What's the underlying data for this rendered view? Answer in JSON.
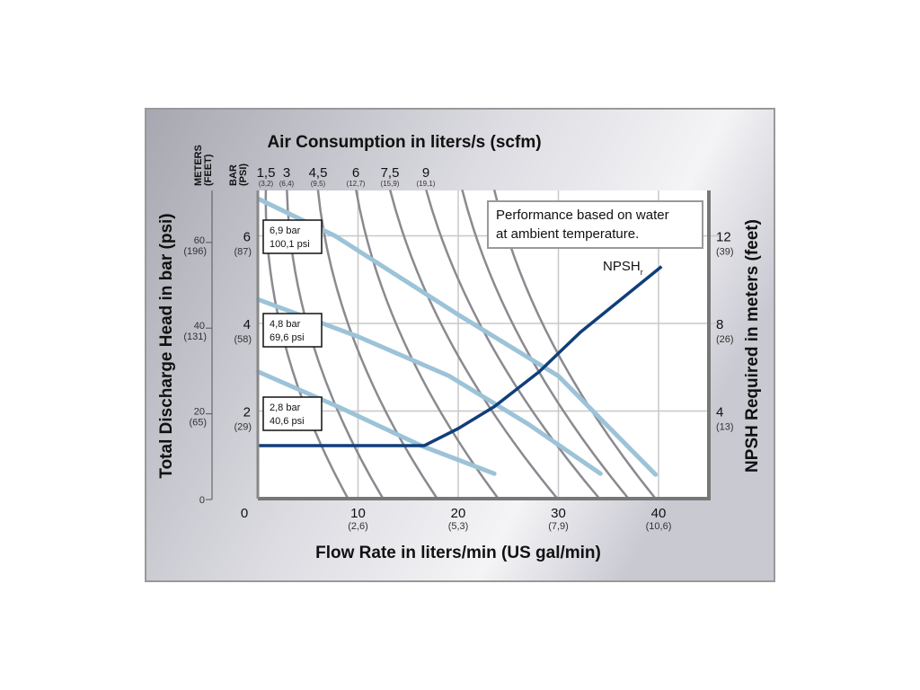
{
  "chart_data": {
    "type": "line",
    "title": "Air Consumption in liters/s (scfm)",
    "xlabel": "Flow Rate in liters/min (US gal/min)",
    "ylabel_left": "Total Discharge Head in bar (psi)",
    "ylabel_right": "NPSH Required in meters (feet)",
    "left_outer_axis_label": [
      "METERS",
      "(FEET)"
    ],
    "left_inner_axis_label": [
      "BAR",
      "(PSI)"
    ],
    "xlim": [
      0,
      45
    ],
    "ylim": [
      0,
      7.05
    ],
    "grid": true,
    "note": [
      "Performance based on water",
      "at ambient temperature."
    ],
    "x_ticks": [
      {
        "value": 0,
        "label": "0",
        "sub": ""
      },
      {
        "value": 10,
        "label": "10",
        "sub": "(2,6)"
      },
      {
        "value": 20,
        "label": "20",
        "sub": "(5,3)"
      },
      {
        "value": 30,
        "label": "30",
        "sub": "(7,9)"
      },
      {
        "value": 40,
        "label": "40",
        "sub": "(10,6)"
      }
    ],
    "y_ticks_bar": [
      {
        "value": 2,
        "label": "2",
        "sub": "(29)"
      },
      {
        "value": 4,
        "label": "4",
        "sub": "(58)"
      },
      {
        "value": 6,
        "label": "6",
        "sub": "(87)"
      }
    ],
    "y_ticks_meters": [
      {
        "value": 0,
        "label": "0",
        "sub": ""
      },
      {
        "value": 20,
        "label": "20",
        "sub": "(65)"
      },
      {
        "value": 40,
        "label": "40",
        "sub": "(131)"
      },
      {
        "value": 60,
        "label": "60",
        "sub": "(196)"
      }
    ],
    "y_ticks_npsh": [
      {
        "value": 4,
        "label": "4",
        "sub": "(13)"
      },
      {
        "value": 8,
        "label": "8",
        "sub": "(26)"
      },
      {
        "value": 12,
        "label": "12",
        "sub": "(39)"
      }
    ],
    "air_ticks": [
      {
        "label": "1,5",
        "sub": "(3,2)",
        "flow_at_top": 0.8
      },
      {
        "label": "3",
        "sub": "(6,4)",
        "flow_at_top": 2.9
      },
      {
        "label": "4,5",
        "sub": "(9,5)",
        "flow_at_top": 6.0
      },
      {
        "label": "6",
        "sub": "(12,7)",
        "flow_at_top": 9.8
      },
      {
        "label": "7,5",
        "sub": "(15,9)",
        "flow_at_top": 13.2
      },
      {
        "label": "9",
        "sub": "(19,1)",
        "flow_at_top": 16.8
      }
    ],
    "air_curves": [
      {
        "top_flow": 0.8,
        "zero_head_flow": 9
      },
      {
        "top_flow": 2.9,
        "zero_head_flow": 12.5
      },
      {
        "top_flow": 6.0,
        "zero_head_flow": 17.9
      },
      {
        "top_flow": 9.8,
        "zero_head_flow": 24
      },
      {
        "top_flow": 13.2,
        "zero_head_flow": 29.9
      },
      {
        "top_flow": 16.8,
        "zero_head_flow": 34.1
      },
      {
        "top_flow": 20.4,
        "zero_head_flow": 37
      },
      {
        "top_flow": 23.6,
        "zero_head_flow": 39.7
      }
    ],
    "pressure_series": [
      {
        "name": "6,9 bar",
        "name2": "100,1 psi",
        "points": [
          [
            0,
            6.85
          ],
          [
            7.7,
            6.0
          ],
          [
            20,
            4.2
          ],
          [
            30,
            2.8
          ],
          [
            39.7,
            0.55
          ]
        ]
      },
      {
        "name": "4,8 bar",
        "name2": "69,6 psi",
        "points": [
          [
            0,
            4.55
          ],
          [
            10,
            3.7
          ],
          [
            19.1,
            2.8
          ],
          [
            27,
            1.7
          ],
          [
            34.2,
            0.57
          ]
        ]
      },
      {
        "name": "2,8 bar",
        "name2": "40,6 psi",
        "points": [
          [
            0,
            2.9
          ],
          [
            8,
            2.1
          ],
          [
            16.4,
            1.2
          ],
          [
            23.6,
            0.57
          ]
        ]
      }
    ],
    "npsh_series": {
      "name": "NPSH",
      "subscript": "r",
      "units": "meters",
      "points": [
        [
          0,
          2.42
        ],
        [
          16.6,
          2.42
        ],
        [
          20,
          3.2
        ],
        [
          23.6,
          4.2
        ],
        [
          28.1,
          5.8
        ],
        [
          32.2,
          7.6
        ],
        [
          40.3,
          10.6
        ]
      ]
    },
    "colors": {
      "air": "#8a8a90",
      "pressure": "#9cc3d8",
      "npsh": "#0f3f7a",
      "frame": "#9a9a9a"
    }
  }
}
